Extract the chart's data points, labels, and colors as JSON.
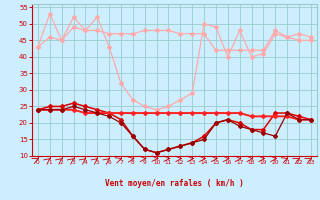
{
  "x": [
    0,
    1,
    2,
    3,
    4,
    5,
    6,
    7,
    8,
    9,
    10,
    11,
    12,
    13,
    14,
    15,
    16,
    17,
    18,
    19,
    20,
    21,
    22,
    23
  ],
  "series": [
    {
      "name": "rafales_max",
      "color": "#ffaaaa",
      "linewidth": 0.9,
      "marker": "D",
      "markersize": 2.0,
      "values": [
        43,
        53,
        45,
        52,
        48,
        52,
        43,
        32,
        27,
        25,
        24,
        25,
        27,
        29,
        50,
        49,
        40,
        48,
        40,
        41,
        47,
        46,
        47,
        46
      ]
    },
    {
      "name": "rafales_mean",
      "color": "#ffaaaa",
      "linewidth": 0.9,
      "marker": "D",
      "markersize": 2.0,
      "values": [
        43,
        46,
        45,
        49,
        48,
        48,
        47,
        47,
        47,
        48,
        48,
        48,
        47,
        47,
        47,
        42,
        42,
        42,
        42,
        42,
        48,
        46,
        45,
        45
      ]
    },
    {
      "name": "vent_max",
      "color": "#dd0000",
      "linewidth": 1.1,
      "marker": "D",
      "markersize": 2.0,
      "values": [
        24,
        25,
        25,
        26,
        25,
        24,
        23,
        21,
        16,
        12,
        11,
        12,
        13,
        14,
        16,
        20,
        21,
        20,
        18,
        18,
        23,
        23,
        22,
        21
      ]
    },
    {
      "name": "vent_mean",
      "color": "#ff2222",
      "linewidth": 1.4,
      "marker": "D",
      "markersize": 2.0,
      "values": [
        24,
        24,
        24,
        24,
        23,
        23,
        23,
        23,
        23,
        23,
        23,
        23,
        23,
        23,
        23,
        23,
        23,
        23,
        22,
        22,
        22,
        22,
        21,
        21
      ]
    },
    {
      "name": "vent_min",
      "color": "#990000",
      "linewidth": 0.9,
      "marker": "D",
      "markersize": 2.0,
      "values": [
        24,
        24,
        24,
        25,
        24,
        23,
        22,
        20,
        16,
        12,
        11,
        12,
        13,
        14,
        15,
        20,
        21,
        19,
        18,
        17,
        16,
        23,
        21,
        21
      ]
    }
  ],
  "xlabel": "Vent moyen/en rafales ( km/h )",
  "xlim": [
    -0.5,
    23.5
  ],
  "ylim": [
    10,
    56
  ],
  "yticks": [
    10,
    15,
    20,
    25,
    30,
    35,
    40,
    45,
    50,
    55
  ],
  "xticks": [
    0,
    1,
    2,
    3,
    4,
    5,
    6,
    7,
    8,
    9,
    10,
    11,
    12,
    13,
    14,
    15,
    16,
    17,
    18,
    19,
    20,
    21,
    22,
    23
  ],
  "bg_color": "#cceeff",
  "grid_color": "#99cccc",
  "text_color": "#cc0000",
  "tick_color": "#cc0000",
  "arrow_angles": [
    30,
    20,
    20,
    20,
    20,
    20,
    20,
    40,
    60,
    80,
    90,
    90,
    80,
    80,
    80,
    80,
    80,
    80,
    80,
    80,
    80,
    40,
    30,
    30
  ]
}
